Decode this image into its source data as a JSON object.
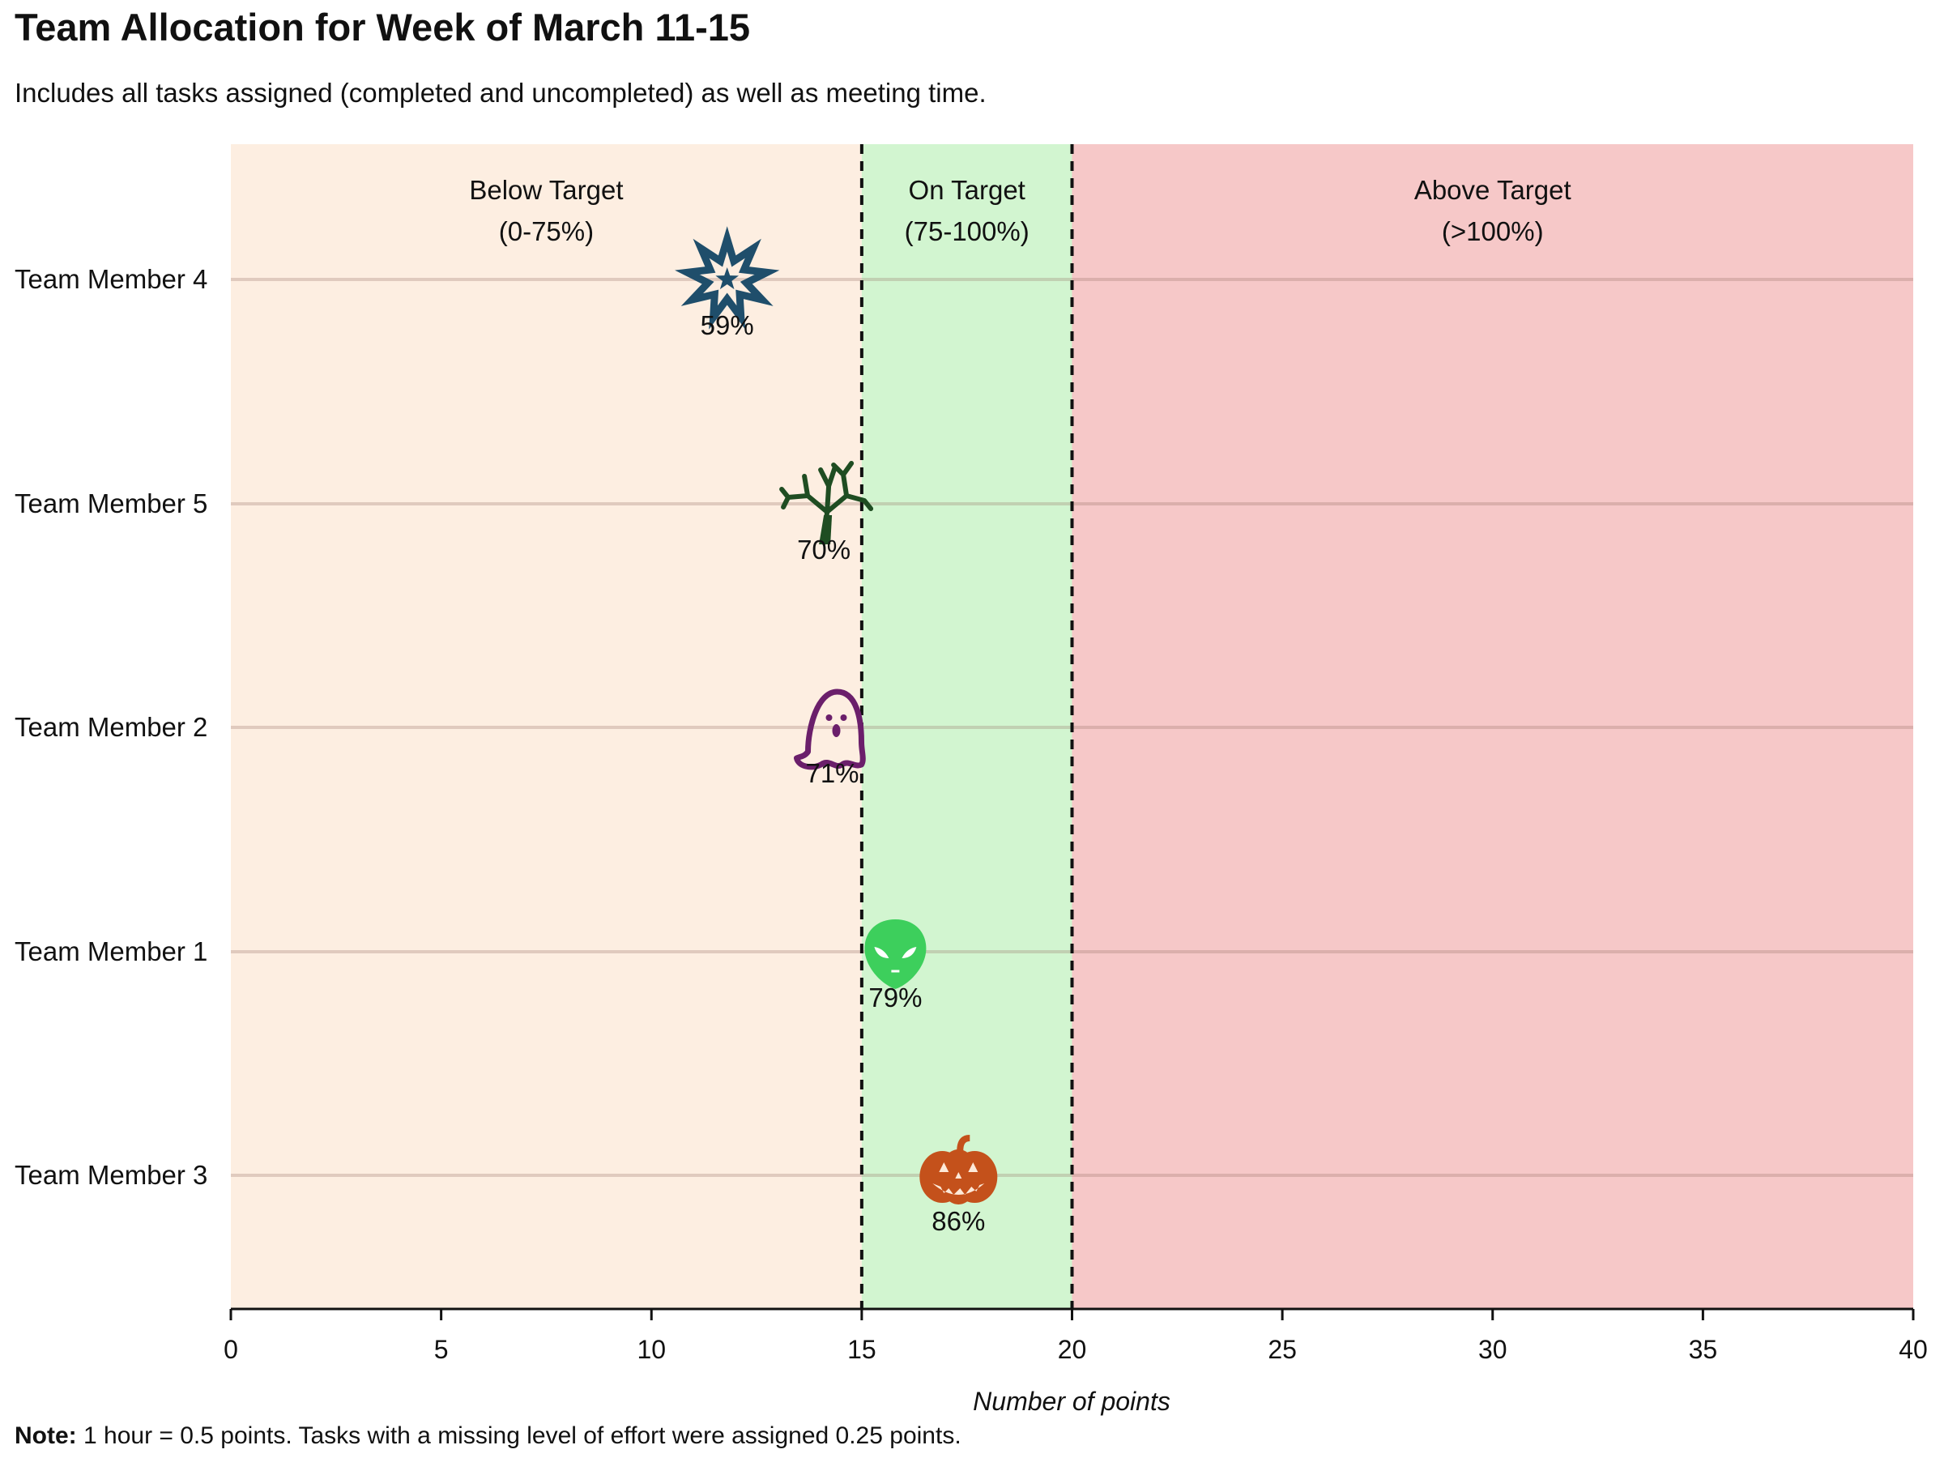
{
  "chart_data": {
    "type": "scatter",
    "title": "Team Allocation for Week of March 11-15",
    "subtitle": "Includes all tasks assigned (completed and uncompleted) as well as meeting time.",
    "xlabel": "Number of points",
    "xlim": [
      0,
      40
    ],
    "xticks": [
      0,
      5,
      10,
      15,
      20,
      25,
      30,
      35,
      40
    ],
    "categories": [
      "Team Member 4",
      "Team Member 5",
      "Team Member 2",
      "Team Member 1",
      "Team Member 3"
    ],
    "points": [
      {
        "category": "Team Member 4",
        "x": 11.8,
        "label": "59%",
        "icon": "explosion-star-icon",
        "color": "#1f4e6b"
      },
      {
        "category": "Team Member 5",
        "x": 14.1,
        "label": "70%",
        "icon": "dead-tree-icon",
        "color": "#1f4d22"
      },
      {
        "category": "Team Member 2",
        "x": 14.3,
        "label": "71%",
        "icon": "ghost-icon",
        "color": "#6b1f6b"
      },
      {
        "category": "Team Member 1",
        "x": 15.8,
        "label": "79%",
        "icon": "alien-head-icon",
        "color": "#3dcf5c"
      },
      {
        "category": "Team Member 3",
        "x": 17.3,
        "label": "86%",
        "icon": "jack-o-lantern-icon",
        "color": "#c4511b"
      }
    ],
    "zones": [
      {
        "name": "Below Target",
        "range_label": "(0-75%)",
        "from": 0,
        "to": 15,
        "color": "#fdeee1"
      },
      {
        "name": "On Target",
        "range_label": "(75-100%)",
        "from": 15,
        "to": 20,
        "color": "#d2f5d0"
      },
      {
        "name": "Above Target",
        "range_label": "(>100%)",
        "from": 20,
        "to": 40,
        "color": "#f6c8c8"
      }
    ],
    "thresholds": [
      15,
      20
    ],
    "grid": "horizontal"
  },
  "note": {
    "bold": "Note:",
    "text": " 1 hour = 0.5 points. Tasks with a missing level of effort were assigned 0.25 points."
  }
}
